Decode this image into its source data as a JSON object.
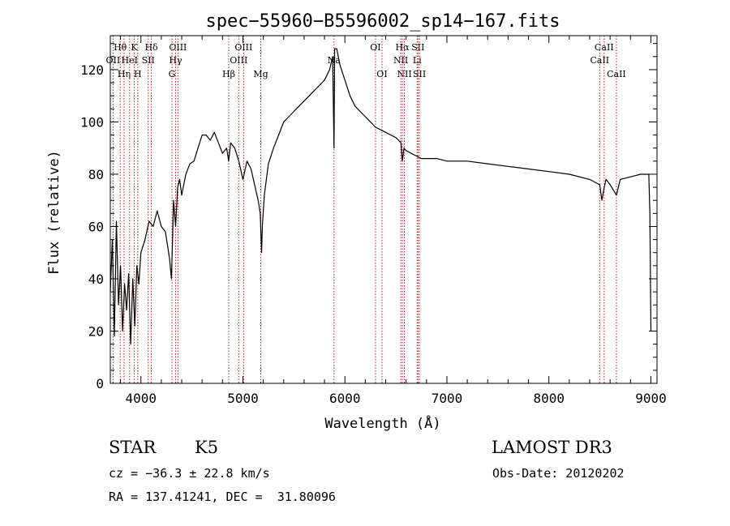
{
  "chart_data": {
    "type": "line",
    "title": "spec−55960−B5596002_sp14−167.fits",
    "xlabel": "Wavelength (Å)",
    "ylabel": "Flux (relative)",
    "xlim": [
      3700,
      9060
    ],
    "ylim": [
      0,
      133
    ],
    "xticks": [
      4000,
      5000,
      6000,
      7000,
      8000,
      9000
    ],
    "yticks": [
      0,
      20,
      40,
      60,
      80,
      100,
      120
    ],
    "grid": false,
    "line_color": "#000000",
    "marker_color": "#b22222",
    "spectrum": {
      "x": [
        3700,
        3720,
        3740,
        3760,
        3780,
        3800,
        3820,
        3840,
        3860,
        3880,
        3900,
        3920,
        3940,
        3960,
        3980,
        4000,
        4040,
        4080,
        4120,
        4160,
        4200,
        4240,
        4280,
        4300,
        4320,
        4340,
        4360,
        4380,
        4400,
        4440,
        4480,
        4520,
        4560,
        4600,
        4640,
        4680,
        4720,
        4760,
        4800,
        4840,
        4860,
        4880,
        4920,
        4960,
        5000,
        5040,
        5080,
        5120,
        5150,
        5170,
        5183,
        5190,
        5210,
        5250,
        5300,
        5350,
        5400,
        5450,
        5500,
        5550,
        5600,
        5650,
        5700,
        5750,
        5800,
        5850,
        5880,
        5893,
        5900,
        5920,
        5950,
        6000,
        6050,
        6100,
        6150,
        6200,
        6250,
        6300,
        6350,
        6400,
        6450,
        6500,
        6550,
        6563,
        6580,
        6600,
        6650,
        6700,
        6750,
        6800,
        6900,
        7000,
        7200,
        7400,
        7600,
        7800,
        8000,
        8200,
        8400,
        8498,
        8520,
        8542,
        8560,
        8600,
        8662,
        8700,
        8800,
        8900,
        8980,
        8990,
        9000
      ],
      "y": [
        35,
        55,
        18,
        62,
        30,
        45,
        20,
        38,
        28,
        42,
        15,
        40,
        22,
        45,
        38,
        50,
        55,
        62,
        60,
        66,
        60,
        58,
        48,
        40,
        70,
        60,
        75,
        78,
        72,
        80,
        84,
        85,
        90,
        95,
        95,
        93,
        96,
        92,
        88,
        90,
        85,
        92,
        90,
        85,
        78,
        85,
        82,
        75,
        70,
        65,
        50,
        60,
        72,
        84,
        90,
        95,
        100,
        102,
        104,
        106,
        108,
        110,
        112,
        114,
        116,
        120,
        125,
        90,
        128,
        128,
        122,
        116,
        110,
        106,
        104,
        102,
        100,
        98,
        97,
        96,
        95,
        94,
        92,
        85,
        90,
        89,
        88,
        87,
        86,
        86,
        86,
        85,
        85,
        84,
        83,
        82,
        81,
        80,
        78,
        76,
        70,
        75,
        78,
        76,
        72,
        78,
        79,
        80,
        80,
        65,
        20
      ]
    },
    "lines": [
      {
        "label": "Hθ",
        "wavelength": 3797,
        "row": 1
      },
      {
        "label": "OII",
        "wavelength": 3727,
        "row": 2
      },
      {
        "label": "Hη",
        "wavelength": 3835,
        "row": 3
      },
      {
        "label": "HeI",
        "wavelength": 3889,
        "row": 2
      },
      {
        "label": "K",
        "wavelength": 3934,
        "row": 1
      },
      {
        "label": "H",
        "wavelength": 3969,
        "row": 3
      },
      {
        "label": "SII",
        "wavelength": 4072,
        "row": 2
      },
      {
        "label": "Hδ",
        "wavelength": 4102,
        "row": 1
      },
      {
        "label": "OIII",
        "wavelength": 4363,
        "row": 1
      },
      {
        "label": "Hγ",
        "wavelength": 4340,
        "row": 2
      },
      {
        "label": "G",
        "wavelength": 4305,
        "row": 3
      },
      {
        "label": "Hβ",
        "wavelength": 4861,
        "row": 3
      },
      {
        "label": "OIII",
        "wavelength": 5007,
        "row": 1
      },
      {
        "label": "OIII",
        "wavelength": 4959,
        "row": 2
      },
      {
        "label": "Mg",
        "wavelength": 5175,
        "row": 3
      },
      {
        "label": "Na",
        "wavelength": 5893,
        "row": 2
      },
      {
        "label": "OI",
        "wavelength": 6300,
        "row": 1
      },
      {
        "label": "OI",
        "wavelength": 6364,
        "row": 3
      },
      {
        "label": "Hα",
        "wavelength": 6563,
        "row": 1
      },
      {
        "label": "NII",
        "wavelength": 6548,
        "row": 2
      },
      {
        "label": "NII",
        "wavelength": 6583,
        "row": 3
      },
      {
        "label": "SII",
        "wavelength": 6717,
        "row": 1
      },
      {
        "label": "Li",
        "wavelength": 6708,
        "row": 2
      },
      {
        "label": "SII",
        "wavelength": 6731,
        "row": 3
      },
      {
        "label": "CaII",
        "wavelength": 8542,
        "row": 1
      },
      {
        "label": "CaII",
        "wavelength": 8498,
        "row": 2
      },
      {
        "label": "CaII",
        "wavelength": 8662,
        "row": 3
      }
    ]
  },
  "info": {
    "class": "STAR",
    "subclass": "K5",
    "survey": "LAMOST DR3",
    "redshift": "cz = −36.3 ± 22.8 km/s",
    "obs_date": "Obs-Date: 20120202",
    "coords": "RA = 137.41241, DEC =  31.80096"
  }
}
